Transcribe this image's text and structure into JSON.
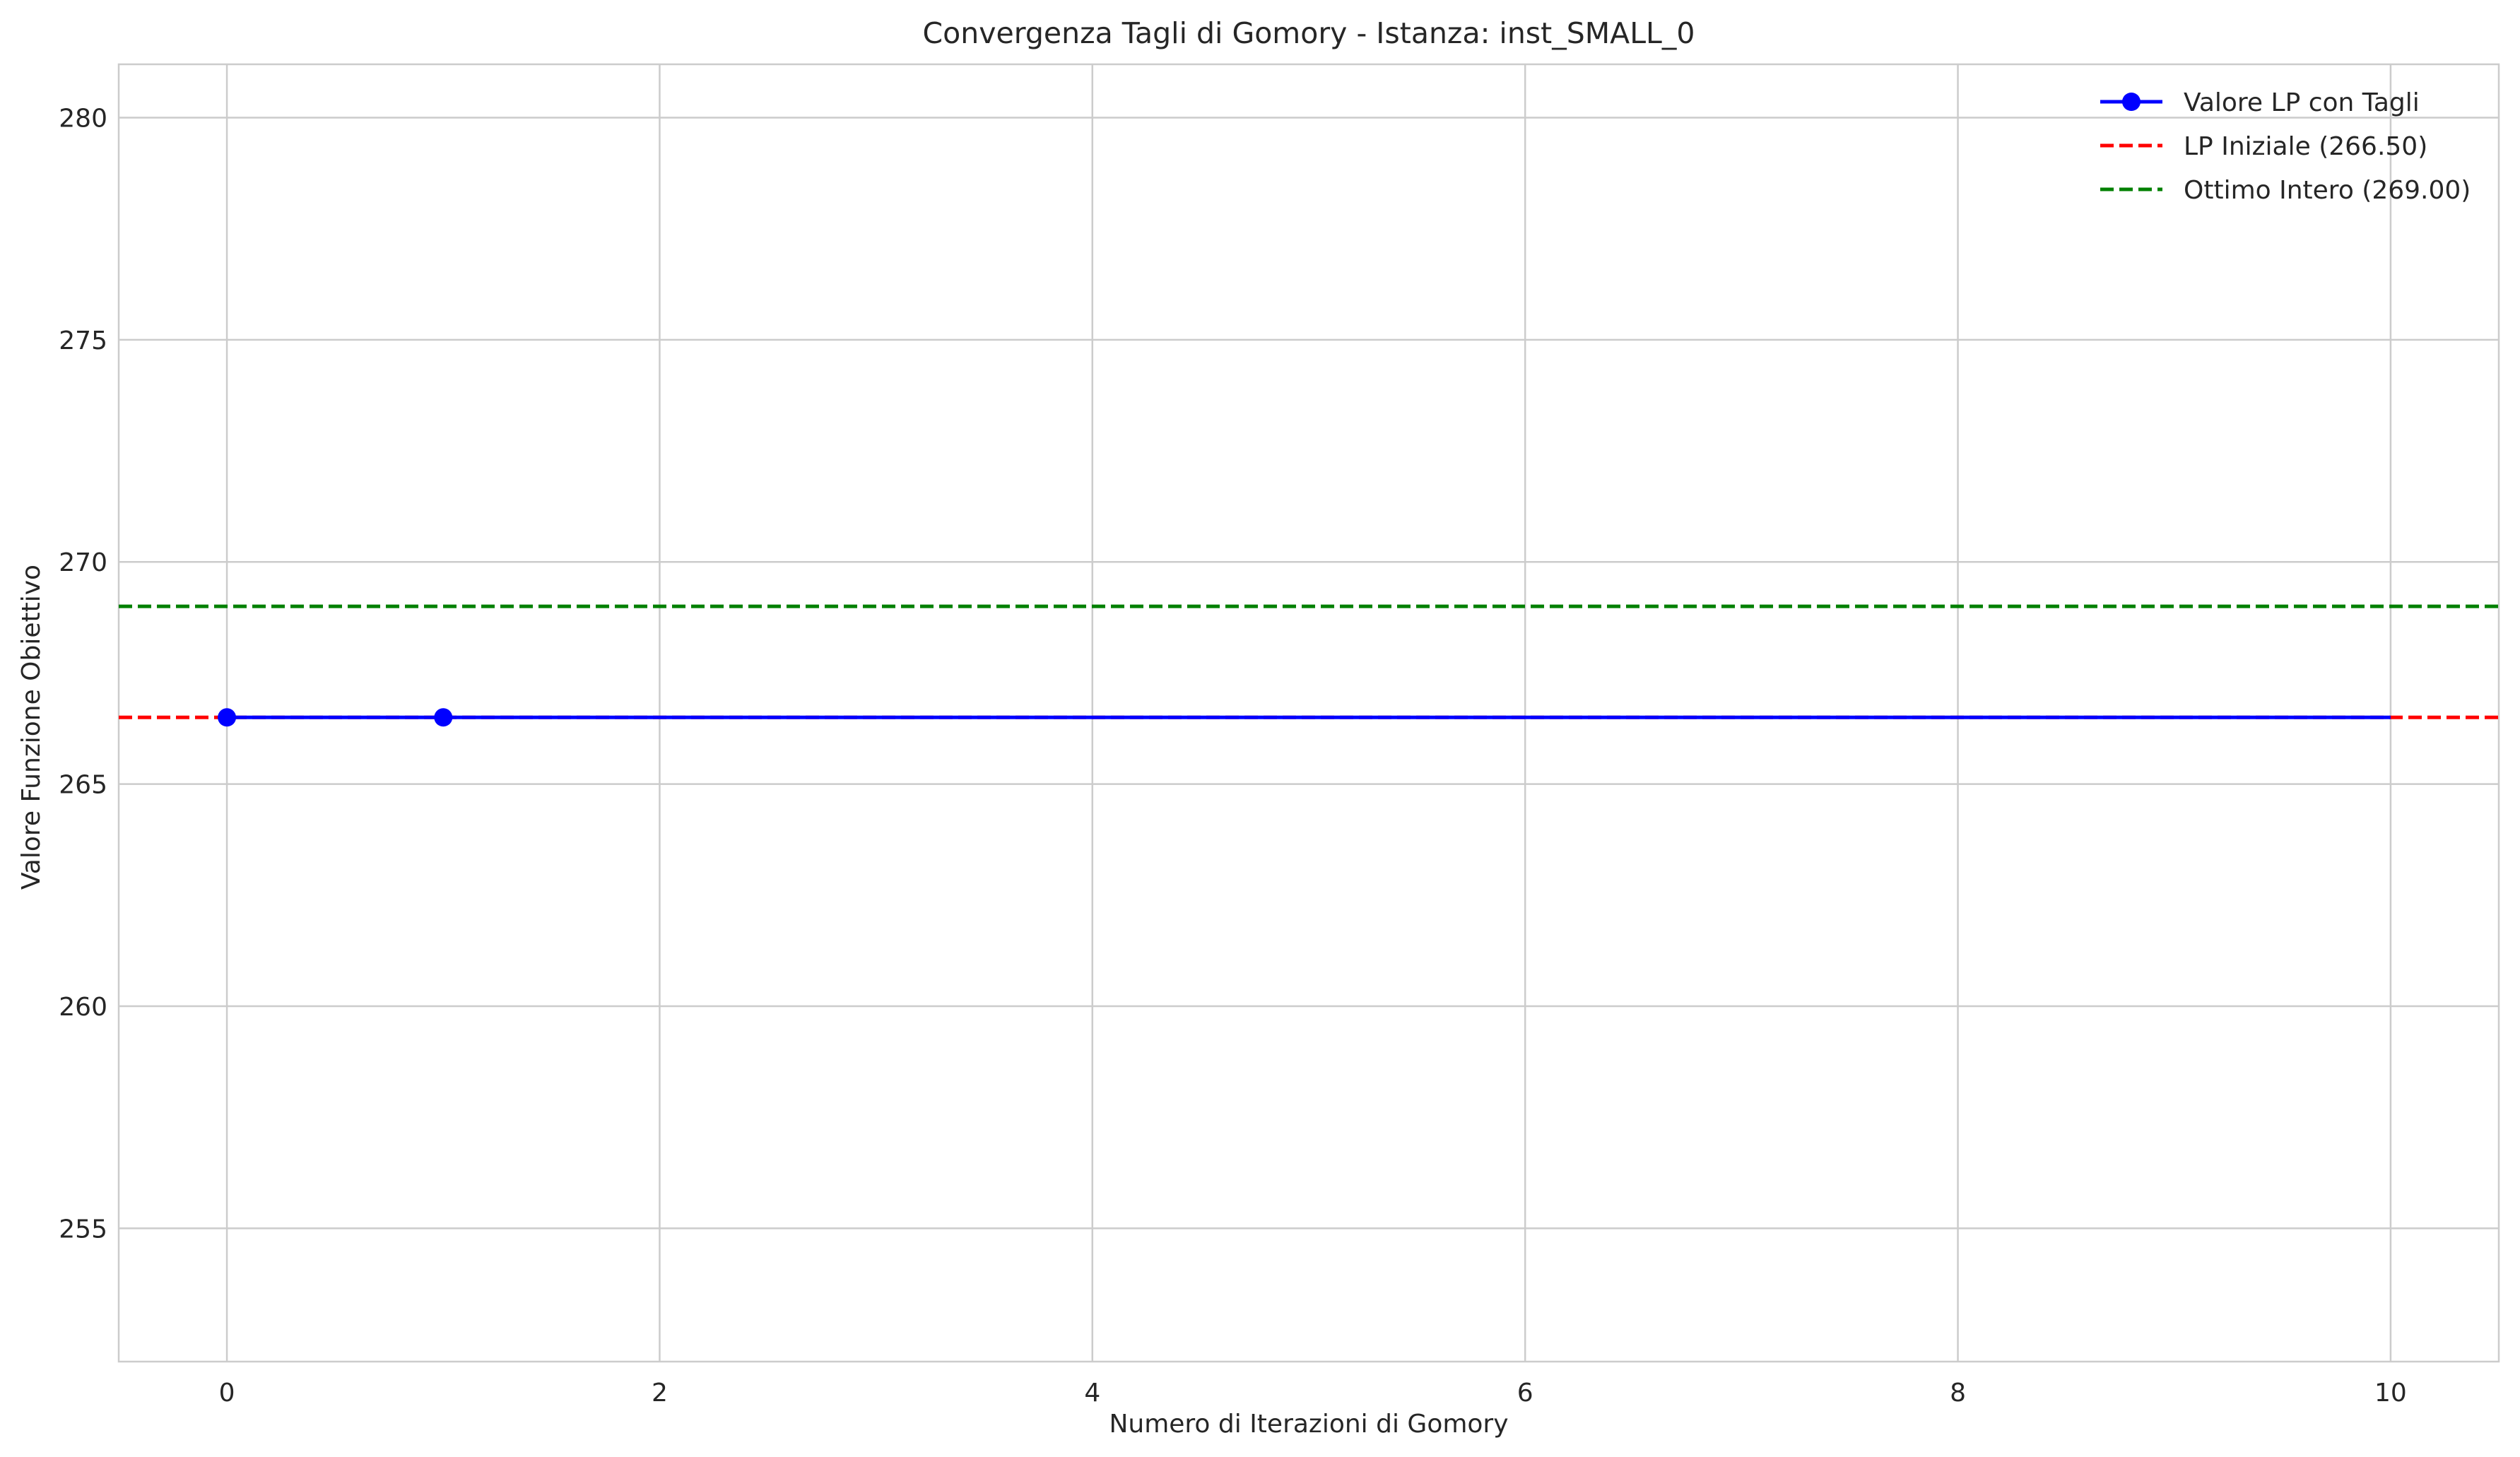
{
  "chart_data": {
    "type": "line",
    "title": "Convergenza Tagli di Gomory - Istanza: inst_SMALL_0",
    "xlabel": "Numero di Iterazioni di Gomory",
    "ylabel": "Valore Funzione Obiettivo",
    "xlim": [
      -0.5,
      10.5
    ],
    "ylim": [
      252,
      281.2
    ],
    "xticks": [
      0,
      2,
      4,
      6,
      8,
      10
    ],
    "yticks": [
      255,
      260,
      265,
      270,
      275,
      280
    ],
    "grid": true,
    "legend_position": "top-right",
    "series": [
      {
        "name": "Valore LP con Tagli",
        "style": "solid-with-markers",
        "color": "#0000ff",
        "x": [
          0,
          1,
          10
        ],
        "y": [
          266.5,
          266.5,
          266.5
        ],
        "marker_x": [
          0,
          1
        ],
        "marker_y": [
          266.5,
          266.5
        ]
      }
    ],
    "reference_lines": [
      {
        "name": "LP Iniziale (266.50)",
        "y": 266.5,
        "color": "#ff0000",
        "style": "dashed"
      },
      {
        "name": "Ottimo Intero (269.00)",
        "y": 269.0,
        "color": "#008000",
        "style": "dashed"
      }
    ]
  }
}
